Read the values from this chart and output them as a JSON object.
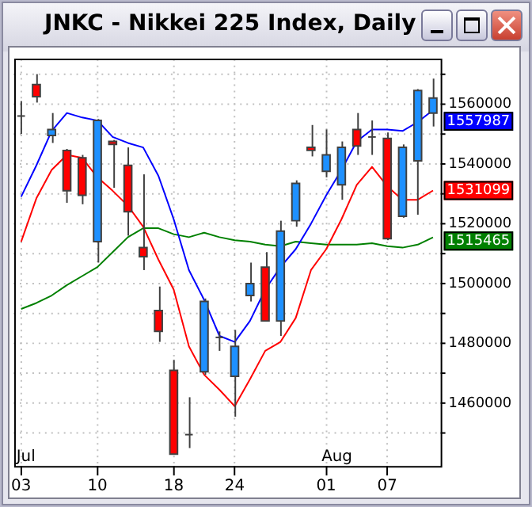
{
  "chart_data": {
    "type": "candlestick",
    "title": "JNKC - Nikkei 225 Index, Daily",
    "categories": [
      "03",
      null,
      null,
      null,
      null,
      "10",
      null,
      null,
      null,
      null,
      "18",
      null,
      null,
      null,
      "24",
      null,
      null,
      null,
      null,
      null,
      "01",
      null,
      null,
      null,
      "07",
      null,
      null,
      null
    ],
    "ohlc": [
      [
        1556000,
        1561000,
        1550000,
        1556000
      ],
      [
        1566500,
        1570000,
        1560500,
        1562500
      ],
      [
        1549500,
        1557000,
        1547000,
        1551500
      ],
      [
        1544500,
        1545000,
        1527000,
        1531000
      ],
      [
        1542000,
        1543000,
        1526500,
        1529500
      ],
      [
        1514000,
        1555000,
        1507000,
        1554500
      ],
      [
        1547500,
        1548000,
        1532000,
        1546500
      ],
      [
        1539500,
        1545500,
        1516000,
        1524000
      ],
      [
        1512000,
        1536500,
        1504500,
        1509000
      ],
      [
        1491000,
        1499000,
        1480500,
        1484000
      ],
      [
        1471000,
        1474500,
        1443000,
        1443000
      ],
      [
        1449500,
        1462000,
        1445000,
        1449500
      ],
      [
        1470500,
        1495000,
        1469500,
        1494000
      ],
      [
        1482000,
        1484000,
        1477500,
        1482000
      ],
      [
        1469000,
        1484500,
        1455500,
        1479000
      ],
      [
        1496000,
        1507000,
        1494000,
        1500000
      ],
      [
        1505500,
        1510500,
        1487500,
        1487500
      ],
      [
        1487500,
        1521000,
        1482500,
        1517500
      ],
      [
        1521000,
        1534500,
        1519000,
        1533500
      ],
      [
        1545500,
        1553000,
        1542500,
        1544500
      ],
      [
        1537500,
        1551500,
        1535500,
        1543000
      ],
      [
        1533000,
        1547500,
        1528000,
        1545500
      ],
      [
        1551500,
        1557000,
        1543000,
        1546000
      ],
      [
        1549000,
        1554500,
        1543000,
        1549000
      ],
      [
        1548500,
        1550500,
        1514500,
        1515000
      ],
      [
        1522500,
        1546500,
        1522000,
        1545500
      ],
      [
        1541000,
        1565000,
        1523000,
        1564500
      ],
      [
        1557000,
        1568500,
        1552500,
        1562000
      ]
    ],
    "colors": [
      "#404040",
      "#ff0000",
      "#1e90ff",
      "#ff0000",
      "#ff0000",
      "#1e90ff",
      "#ff0000",
      "#ff0000",
      "#ff0000",
      "#ff0000",
      "#ff0000",
      "#404040",
      "#1e90ff",
      "#404040",
      "#1e90ff",
      "#1e90ff",
      "#ff0000",
      "#1e90ff",
      "#1e90ff",
      "#ff0000",
      "#1e90ff",
      "#1e90ff",
      "#ff0000",
      "#404040",
      "#ff0000",
      "#1e90ff",
      "#1e90ff",
      "#1e90ff"
    ],
    "series": [
      {
        "type": "line",
        "color": "#0000ff",
        "values": [
          1529000,
          1539500,
          1551000,
          1557000,
          1555500,
          1554500,
          1549000,
          1547000,
          1545500,
          1536000,
          1521500,
          1504500,
          1494500,
          1482500,
          1480500,
          1487500,
          1498000,
          1505500,
          1511500,
          1520000,
          1529500,
          1538000,
          1547500,
          1551500,
          1551500,
          1551000,
          1554000,
          1557987
        ],
        "value_labels": [
          null,
          null,
          null,
          null,
          null,
          null,
          null,
          null,
          null,
          null,
          null,
          null,
          null,
          null,
          null,
          null,
          null,
          null,
          null,
          null,
          null,
          null,
          null,
          null,
          null,
          null,
          null,
          "1557987"
        ]
      },
      {
        "type": "line",
        "color": "#ff0000",
        "values": [
          1514000,
          1528500,
          1538000,
          1543000,
          1542000,
          1535500,
          1531000,
          1526000,
          1519000,
          1508000,
          1498000,
          1479000,
          1469500,
          1464500,
          1459000,
          1468000,
          1477500,
          1480500,
          1488500,
          1504500,
          1511500,
          1521500,
          1533000,
          1539000,
          1532500,
          1528000,
          1528000,
          1531099
        ],
        "value_labels": [
          null,
          null,
          null,
          null,
          null,
          null,
          null,
          null,
          null,
          null,
          null,
          null,
          null,
          null,
          null,
          null,
          null,
          null,
          null,
          null,
          null,
          null,
          null,
          null,
          null,
          null,
          null,
          "1531099"
        ]
      },
      {
        "type": "line",
        "color": "#008000",
        "values": [
          1491500,
          1493500,
          1496000,
          1499500,
          1502500,
          1505500,
          1510500,
          1515500,
          1518500,
          1518500,
          1516500,
          1515500,
          1517000,
          1515500,
          1514500,
          1514000,
          1513000,
          1512500,
          1514000,
          1513500,
          1513000,
          1513000,
          1513000,
          1513500,
          1512500,
          1512000,
          1513000,
          1515465
        ],
        "value_labels": [
          null,
          null,
          null,
          null,
          null,
          null,
          null,
          null,
          null,
          null,
          null,
          null,
          null,
          null,
          null,
          null,
          null,
          null,
          null,
          null,
          null,
          null,
          null,
          null,
          null,
          null,
          null,
          "1515465"
        ]
      }
    ],
    "ylim": [
      1439000,
      1575000
    ],
    "yticks": [
      {
        "value": 1450000,
        "label": null
      },
      1460000,
      {
        "value": 1470000,
        "label": null
      },
      1480000,
      {
        "value": 1490000,
        "label": null
      },
      1500000,
      {
        "value": 1510000,
        "label": null
      },
      1520000,
      {
        "value": 1530000,
        "label": null
      },
      1540000,
      {
        "value": 1550000,
        "label": null
      },
      1560000,
      {
        "value": 1570000,
        "label": null
      }
    ],
    "grid": true,
    "marker": "none",
    "annotations": [
      "Jul",
      "Aug"
    ]
  }
}
